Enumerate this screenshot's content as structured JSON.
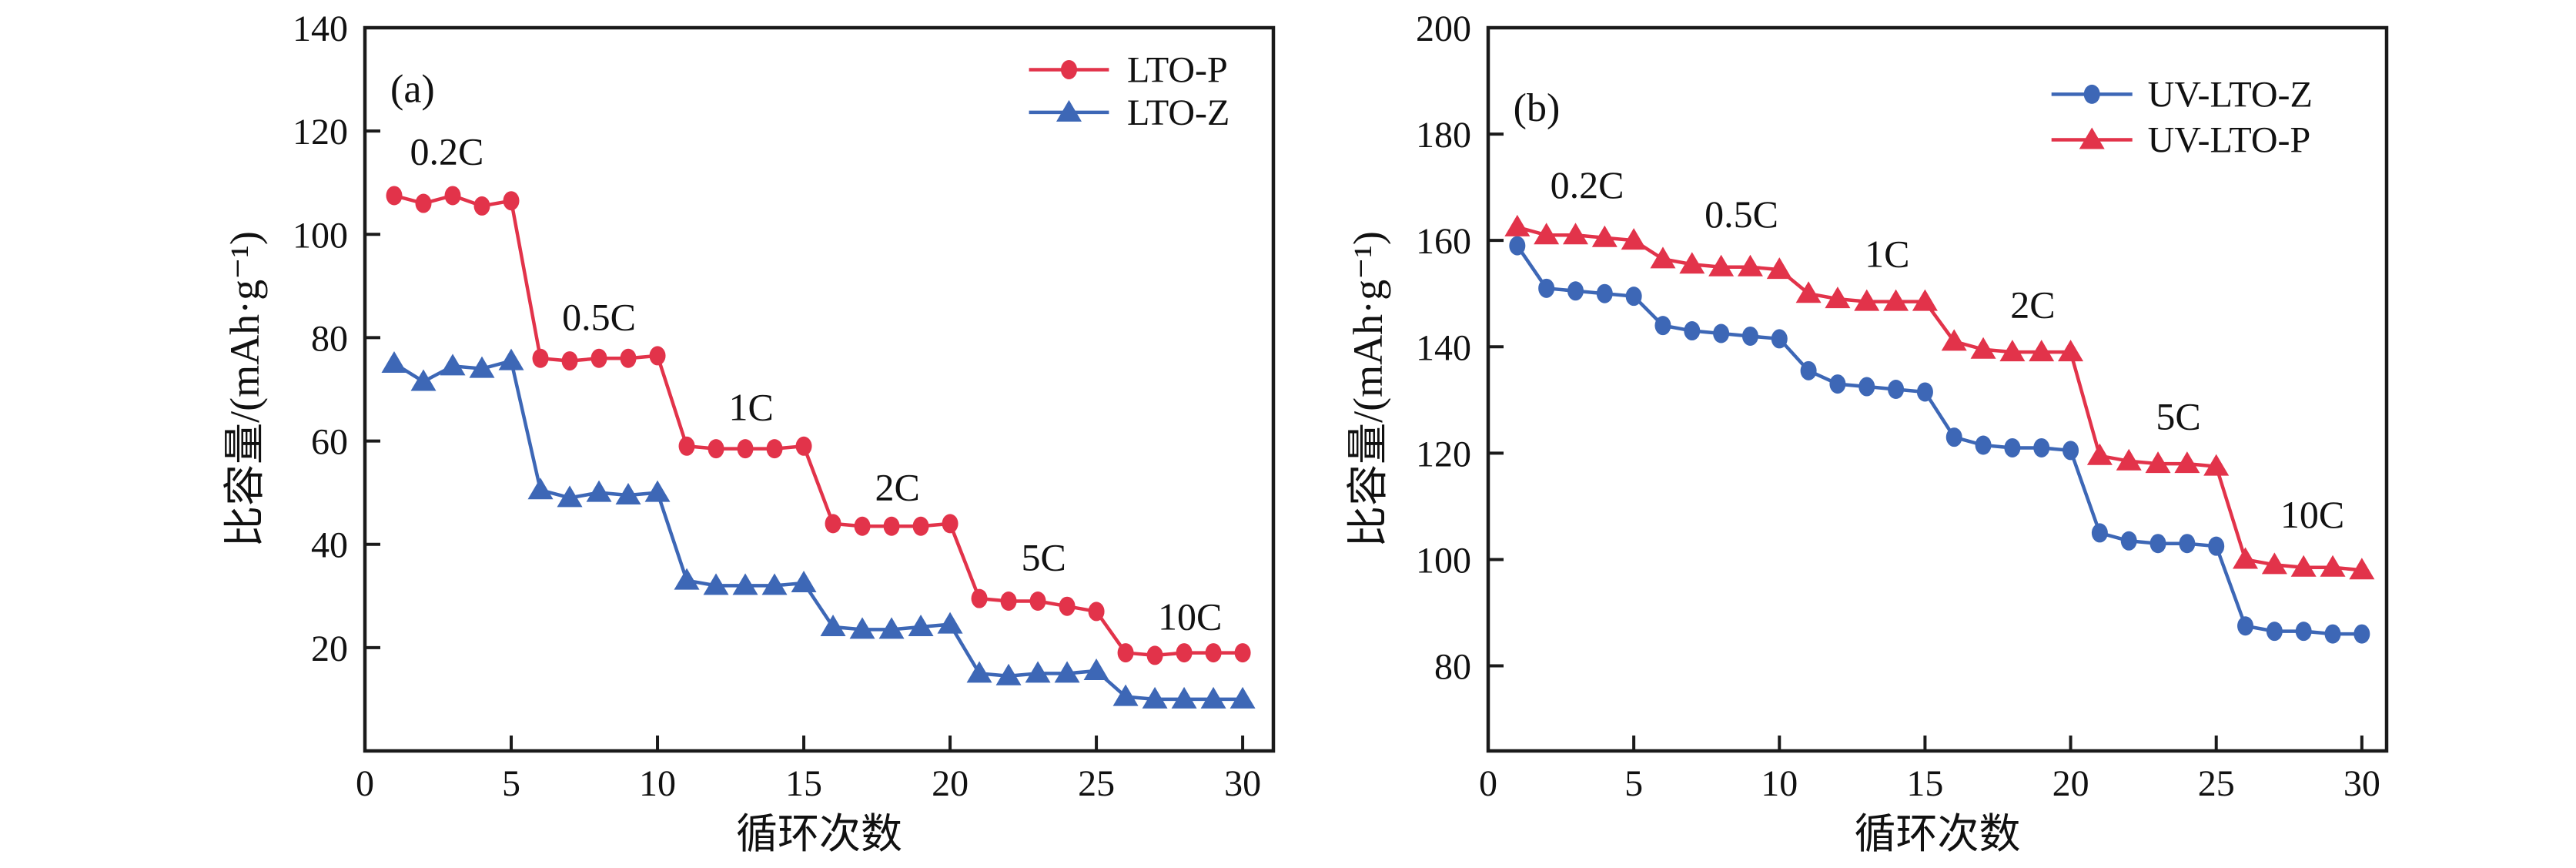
{
  "figure": {
    "background": "#ffffff",
    "axis_color": "#1a1a1a",
    "text_color": "#111111"
  },
  "chart_data": [
    {
      "type": "line",
      "panel_label": "(a)",
      "title": "",
      "xlabel": "循环次数",
      "ylabel": "比容量/(mAh·g⁻¹)",
      "xlim": [
        0,
        31.05
      ],
      "ylim": [
        0,
        140
      ],
      "x_ticks": [
        0,
        5,
        10,
        15,
        20,
        25,
        30
      ],
      "y_ticks": [
        20,
        40,
        60,
        80,
        100,
        120,
        140
      ],
      "grid": false,
      "legend_position": "top-right-inside",
      "legend": [
        {
          "label": "LTO-P",
          "marker": "circle",
          "color": "#e2334a"
        },
        {
          "label": "LTO-Z",
          "marker": "triangle",
          "color": "#3d67b6"
        }
      ],
      "series": [
        {
          "name": "LTO-P",
          "marker": "circle",
          "color": "#e2334a",
          "x": [
            1,
            2,
            3,
            4,
            5,
            6,
            7,
            8,
            9,
            10,
            11,
            12,
            13,
            14,
            15,
            16,
            17,
            18,
            19,
            20,
            21,
            22,
            23,
            24,
            25,
            26,
            27,
            28,
            29,
            30
          ],
          "values": [
            107.5,
            106,
            107.5,
            105.5,
            106.5,
            76,
            75.5,
            76,
            76,
            76.5,
            59,
            58.5,
            58.5,
            58.5,
            59,
            44,
            43.5,
            43.5,
            43.5,
            44,
            29.5,
            29,
            29,
            28,
            27,
            19,
            18.5,
            19,
            19,
            19
          ]
        },
        {
          "name": "LTO-Z",
          "marker": "triangle",
          "color": "#3d67b6",
          "x": [
            1,
            2,
            3,
            4,
            5,
            6,
            7,
            8,
            9,
            10,
            11,
            12,
            13,
            14,
            15,
            16,
            17,
            18,
            19,
            20,
            21,
            22,
            23,
            24,
            25,
            26,
            27,
            28,
            29,
            30
          ],
          "values": [
            75,
            71.5,
            74.5,
            74,
            75.5,
            50.5,
            49,
            50,
            49.5,
            50,
            33,
            32,
            32,
            32,
            32.5,
            24,
            23.5,
            23.5,
            24,
            24.5,
            15,
            14.5,
            15,
            15,
            15.5,
            10.5,
            10,
            10,
            10,
            10
          ]
        }
      ],
      "annotations": [
        {
          "text": "0.2C",
          "x": 2.8,
          "y": 113.5
        },
        {
          "text": "0.5C",
          "x": 8.0,
          "y": 81.5
        },
        {
          "text": "1C",
          "x": 13.2,
          "y": 64
        },
        {
          "text": "2C",
          "x": 18.2,
          "y": 48.5
        },
        {
          "text": "5C",
          "x": 23.2,
          "y": 35
        },
        {
          "text": "10C",
          "x": 28.2,
          "y": 23.5
        }
      ]
    },
    {
      "type": "line",
      "panel_label": "(b)",
      "title": "",
      "xlabel": "循环次数",
      "ylabel": "比容量/(mAh·g⁻¹)",
      "xlim": [
        0,
        30.85
      ],
      "ylim": [
        64,
        200
      ],
      "x_ticks": [
        0,
        5,
        10,
        15,
        20,
        25,
        30
      ],
      "y_ticks": [
        80,
        100,
        120,
        140,
        160,
        180,
        200
      ],
      "grid": false,
      "legend_position": "top-right-inside",
      "legend": [
        {
          "label": "UV-LTO-Z",
          "marker": "circle",
          "color": "#3d67b6"
        },
        {
          "label": "UV-LTO-P",
          "marker": "triangle",
          "color": "#e2334a"
        }
      ],
      "series": [
        {
          "name": "UV-LTO-Z",
          "marker": "circle",
          "color": "#3d67b6",
          "x": [
            1,
            2,
            3,
            4,
            5,
            6,
            7,
            8,
            9,
            10,
            11,
            12,
            13,
            14,
            15,
            16,
            17,
            18,
            19,
            20,
            21,
            22,
            23,
            24,
            25,
            26,
            27,
            28,
            29,
            30
          ],
          "values": [
            159,
            151,
            150.5,
            150,
            149.5,
            144,
            143,
            142.5,
            142,
            141.5,
            135.5,
            133,
            132.5,
            132,
            131.5,
            123,
            121.5,
            121,
            121,
            120.5,
            105,
            103.5,
            103,
            103,
            102.5,
            87.5,
            86.5,
            86.5,
            86,
            86
          ]
        },
        {
          "name": "UV-LTO-P",
          "marker": "triangle",
          "color": "#e2334a",
          "x": [
            1,
            2,
            3,
            4,
            5,
            6,
            7,
            8,
            9,
            10,
            11,
            12,
            13,
            14,
            15,
            16,
            17,
            18,
            19,
            20,
            21,
            22,
            23,
            24,
            25,
            26,
            27,
            28,
            29,
            30
          ],
          "values": [
            162.5,
            161,
            161,
            160.5,
            160,
            156.5,
            155.5,
            155,
            155,
            154.5,
            150,
            149,
            148.5,
            148.5,
            148.5,
            141,
            139.5,
            139,
            139,
            139,
            119.5,
            118.5,
            118,
            118,
            117.5,
            100,
            99,
            98.5,
            98.5,
            98
          ]
        }
      ],
      "annotations": [
        {
          "text": "0.2C",
          "x": 3.4,
          "y": 168
        },
        {
          "text": "0.5C",
          "x": 8.7,
          "y": 162.5
        },
        {
          "text": "1C",
          "x": 13.7,
          "y": 155
        },
        {
          "text": "2C",
          "x": 18.7,
          "y": 145.5
        },
        {
          "text": "5C",
          "x": 23.7,
          "y": 124.5
        },
        {
          "text": "10C",
          "x": 28.3,
          "y": 106
        }
      ]
    }
  ]
}
